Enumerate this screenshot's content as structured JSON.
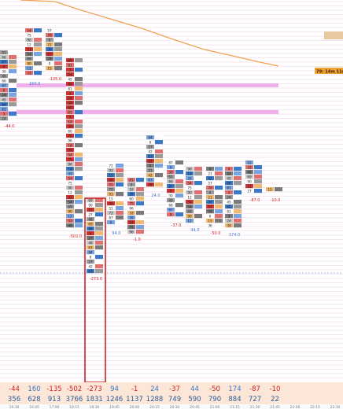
{
  "chart_data": {
    "type": "footprint",
    "time_labels": [
      "16:30",
      "16:45",
      "17:00",
      "19:15",
      "19:30",
      "19:45",
      "20:00",
      "20:15",
      "20:30",
      "20:45",
      "21:00",
      "21:15",
      "21:30",
      "21:45",
      "22:00",
      "22:15",
      "22:30"
    ],
    "bars": [
      {
        "delta": -44,
        "volume": 356
      },
      {
        "delta": 160,
        "volume": 628
      },
      {
        "delta": -135,
        "volume": 913
      },
      {
        "delta": -502,
        "volume": 3766
      },
      {
        "delta": -273,
        "volume": 1831
      },
      {
        "delta": 94,
        "volume": 1246
      },
      {
        "delta": -1,
        "volume": 1137
      },
      {
        "delta": 24,
        "volume": 1288
      },
      {
        "delta": -37,
        "volume": 749
      },
      {
        "delta": 44,
        "volume": 590
      },
      {
        "delta": -50,
        "volume": 790
      },
      {
        "delta": 174,
        "volume": 884
      },
      {
        "delta": -87,
        "volume": 727
      },
      {
        "delta": -10,
        "volume": 22
      }
    ],
    "highlighted_bar": 4,
    "price_tag": "79: 14m 11s",
    "colors": {
      "positive": "#3a78c8",
      "negative": "#cc2222",
      "band": "#eecde6",
      "ma_line": "#f0a050",
      "zone": "#f0b0ec",
      "footer_bg": "#fbe6d8",
      "selection": "#cc2222"
    }
  }
}
